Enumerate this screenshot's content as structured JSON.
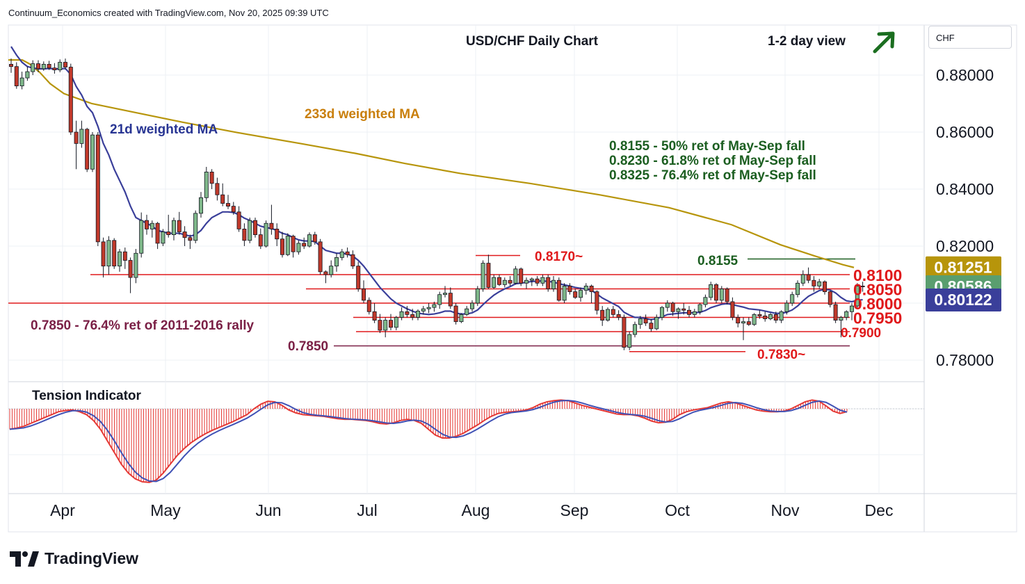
{
  "header": "Continuum_Economics created with TradingView.com, Nov 20, 2025 09:39 UTC",
  "brand": "TradingView",
  "currency_button": "CHF",
  "chart_data": {
    "type": "candlestick",
    "title": "USD/CHF Daily Chart",
    "view_note": "1-2 day view",
    "direction": "up",
    "y_axis": {
      "ticks": [
        "0.88000",
        "0.86000",
        "0.84000",
        "0.82000",
        "0.78000"
      ],
      "range": [
        0.7725,
        0.8955
      ]
    },
    "x_axis": {
      "labels": [
        "Apr",
        "May",
        "Jun",
        "Jul",
        "Aug",
        "Sep",
        "Oct",
        "Nov",
        "Dec"
      ]
    },
    "price_labels": [
      {
        "text": "0.81251",
        "color": "#b7950b",
        "value": 0.81251
      },
      {
        "text": "0.80586",
        "color": "#5a9e6f",
        "value": 0.80586
      },
      {
        "text": "0.80122",
        "color": "#3a3f9a",
        "value": 0.80122
      }
    ],
    "levels": [
      {
        "value": 0.81,
        "label": "0.8100",
        "color": "#e0191b"
      },
      {
        "value": 0.805,
        "label": "0.8050",
        "color": "#e0191b"
      },
      {
        "value": 0.8,
        "label": "0.8000",
        "color": "#e0191b"
      },
      {
        "value": 0.795,
        "label": "0.7950",
        "color": "#e0191b"
      },
      {
        "value": 0.79,
        "label": "0.7900",
        "color": "#e0191b"
      },
      {
        "value": 0.785,
        "label": "0.7850",
        "color": "#7a1f45"
      }
    ],
    "annotations": {
      "high": "0.8170~",
      "low": "0.7830~",
      "fib_level": "0.8155",
      "ma21": "21d weighted MA",
      "ma233": "233d weighted MA",
      "fib_lines": [
        "0.8155 - 50% ret of May-Sep fall",
        "0.8230 - 61.8% ret of May-Sep fall",
        "0.8325 - 76.4% ret of May-Sep fall"
      ],
      "long_term": "0.7850 - 76.4% ret of 2011-2016 rally"
    },
    "ohlc": [
      [
        0.8838,
        0.8858,
        0.8808,
        0.883
      ],
      [
        0.883,
        0.8845,
        0.8752,
        0.8762
      ],
      [
        0.8762,
        0.8812,
        0.875,
        0.879
      ],
      [
        0.879,
        0.883,
        0.878,
        0.8812
      ],
      [
        0.8812,
        0.8852,
        0.88,
        0.884
      ],
      [
        0.884,
        0.8852,
        0.881,
        0.8822
      ],
      [
        0.8822,
        0.8848,
        0.8815,
        0.8838
      ],
      [
        0.8838,
        0.885,
        0.8818,
        0.8825
      ],
      [
        0.8825,
        0.8842,
        0.8805,
        0.8818
      ],
      [
        0.8818,
        0.8855,
        0.881,
        0.8845
      ],
      [
        0.8845,
        0.8858,
        0.882,
        0.8828
      ],
      [
        0.8828,
        0.884,
        0.859,
        0.86
      ],
      [
        0.86,
        0.864,
        0.847,
        0.856
      ],
      [
        0.856,
        0.864,
        0.8545,
        0.861
      ],
      [
        0.861,
        0.8615,
        0.846,
        0.847
      ],
      [
        0.847,
        0.86,
        0.846,
        0.859
      ],
      [
        0.859,
        0.86,
        0.82,
        0.8215
      ],
      [
        0.8215,
        0.823,
        0.809,
        0.813
      ],
      [
        0.813,
        0.8235,
        0.81,
        0.822
      ],
      [
        0.822,
        0.8228,
        0.812,
        0.813
      ],
      [
        0.813,
        0.819,
        0.811,
        0.818
      ],
      [
        0.818,
        0.8195,
        0.812,
        0.815
      ],
      [
        0.815,
        0.816,
        0.8035,
        0.809
      ],
      [
        0.809,
        0.819,
        0.807,
        0.8175
      ],
      [
        0.8175,
        0.8318,
        0.816,
        0.829
      ],
      [
        0.829,
        0.831,
        0.824,
        0.826
      ],
      [
        0.826,
        0.829,
        0.823,
        0.828
      ],
      [
        0.828,
        0.8285,
        0.819,
        0.821
      ],
      [
        0.821,
        0.826,
        0.82,
        0.825
      ],
      [
        0.825,
        0.831,
        0.823,
        0.824
      ],
      [
        0.824,
        0.83,
        0.822,
        0.829
      ],
      [
        0.829,
        0.832,
        0.824,
        0.825
      ],
      [
        0.825,
        0.827,
        0.82,
        0.823
      ],
      [
        0.823,
        0.824,
        0.819,
        0.822
      ],
      [
        0.822,
        0.8325,
        0.821,
        0.8315
      ],
      [
        0.8315,
        0.839,
        0.83,
        0.837
      ],
      [
        0.837,
        0.8478,
        0.8355,
        0.846
      ],
      [
        0.846,
        0.847,
        0.84,
        0.842
      ],
      [
        0.842,
        0.844,
        0.836,
        0.838
      ],
      [
        0.838,
        0.842,
        0.834,
        0.835
      ],
      [
        0.835,
        0.838,
        0.833,
        0.834
      ],
      [
        0.834,
        0.8355,
        0.831,
        0.832
      ],
      [
        0.832,
        0.834,
        0.825,
        0.826
      ],
      [
        0.826,
        0.828,
        0.82,
        0.822
      ],
      [
        0.822,
        0.83,
        0.821,
        0.829
      ],
      [
        0.829,
        0.83,
        0.823,
        0.824
      ],
      [
        0.824,
        0.8262,
        0.819,
        0.82
      ],
      [
        0.82,
        0.829,
        0.8195,
        0.828
      ],
      [
        0.828,
        0.8345,
        0.824,
        0.826
      ],
      [
        0.826,
        0.828,
        0.82,
        0.8225
      ],
      [
        0.8225,
        0.825,
        0.816,
        0.817
      ],
      [
        0.817,
        0.8245,
        0.8165,
        0.8235
      ],
      [
        0.8235,
        0.824,
        0.816,
        0.818
      ],
      [
        0.818,
        0.822,
        0.817,
        0.821
      ],
      [
        0.821,
        0.823,
        0.819,
        0.82
      ],
      [
        0.82,
        0.8248,
        0.8195,
        0.824
      ],
      [
        0.824,
        0.825,
        0.8205,
        0.8215
      ],
      [
        0.8215,
        0.8225,
        0.81,
        0.811
      ],
      [
        0.811,
        0.8115,
        0.807,
        0.81
      ],
      [
        0.81,
        0.815,
        0.809,
        0.813
      ],
      [
        0.813,
        0.8175,
        0.811,
        0.816
      ],
      [
        0.816,
        0.819,
        0.815,
        0.818
      ],
      [
        0.818,
        0.8195,
        0.816,
        0.817
      ],
      [
        0.817,
        0.8185,
        0.812,
        0.813
      ],
      [
        0.813,
        0.8145,
        0.804,
        0.805
      ],
      [
        0.805,
        0.808,
        0.8,
        0.801
      ],
      [
        0.801,
        0.802,
        0.796,
        0.797
      ],
      [
        0.797,
        0.8,
        0.793,
        0.794
      ],
      [
        0.794,
        0.7962,
        0.7895,
        0.7905
      ],
      [
        0.7905,
        0.795,
        0.788,
        0.794
      ],
      [
        0.794,
        0.7962,
        0.7905,
        0.7915
      ],
      [
        0.7915,
        0.7955,
        0.7905,
        0.795
      ],
      [
        0.795,
        0.7985,
        0.794,
        0.797
      ],
      [
        0.797,
        0.799,
        0.795,
        0.796
      ],
      [
        0.796,
        0.798,
        0.794,
        0.795
      ],
      [
        0.795,
        0.7978,
        0.794,
        0.7972
      ],
      [
        0.7972,
        0.799,
        0.796,
        0.798
      ],
      [
        0.798,
        0.8,
        0.7965,
        0.7985
      ],
      [
        0.7985,
        0.8005,
        0.797,
        0.7995
      ],
      [
        0.7995,
        0.804,
        0.798,
        0.803
      ],
      [
        0.803,
        0.806,
        0.802,
        0.8035
      ],
      [
        0.8035,
        0.8055,
        0.798,
        0.799
      ],
      [
        0.799,
        0.8,
        0.7925,
        0.7935
      ],
      [
        0.7935,
        0.7965,
        0.793,
        0.796
      ],
      [
        0.796,
        0.799,
        0.7955,
        0.798
      ],
      [
        0.798,
        0.801,
        0.797,
        0.8
      ],
      [
        0.8,
        0.806,
        0.799,
        0.805
      ],
      [
        0.805,
        0.815,
        0.804,
        0.814
      ],
      [
        0.814,
        0.817,
        0.805,
        0.8055
      ],
      [
        0.8055,
        0.81,
        0.805,
        0.809
      ],
      [
        0.809,
        0.81,
        0.806,
        0.8065
      ],
      [
        0.8065,
        0.809,
        0.8055,
        0.808
      ],
      [
        0.808,
        0.8095,
        0.806,
        0.807
      ],
      [
        0.807,
        0.813,
        0.8065,
        0.812
      ],
      [
        0.812,
        0.8125,
        0.806,
        0.807
      ],
      [
        0.807,
        0.809,
        0.805,
        0.808
      ],
      [
        0.808,
        0.809,
        0.806,
        0.8085
      ],
      [
        0.8085,
        0.8095,
        0.806,
        0.807
      ],
      [
        0.807,
        0.81,
        0.806,
        0.809
      ],
      [
        0.809,
        0.81,
        0.804,
        0.805
      ],
      [
        0.805,
        0.8095,
        0.804,
        0.808
      ],
      [
        0.808,
        0.809,
        0.8005,
        0.801
      ],
      [
        0.801,
        0.807,
        0.8,
        0.806
      ],
      [
        0.806,
        0.807,
        0.803,
        0.804
      ],
      [
        0.804,
        0.805,
        0.8015,
        0.802
      ],
      [
        0.802,
        0.8055,
        0.8005,
        0.8045
      ],
      [
        0.8045,
        0.807,
        0.803,
        0.806
      ],
      [
        0.806,
        0.8065,
        0.8,
        0.804
      ],
      [
        0.804,
        0.8045,
        0.796,
        0.7975
      ],
      [
        0.7975,
        0.799,
        0.792,
        0.794
      ],
      [
        0.794,
        0.7985,
        0.7935,
        0.7978
      ],
      [
        0.7978,
        0.799,
        0.795,
        0.796
      ],
      [
        0.796,
        0.7975,
        0.794,
        0.795
      ],
      [
        0.795,
        0.796,
        0.7835,
        0.7845
      ],
      [
        0.7845,
        0.79,
        0.7835,
        0.789
      ],
      [
        0.789,
        0.7935,
        0.788,
        0.7925
      ],
      [
        0.7925,
        0.7955,
        0.791,
        0.7945
      ],
      [
        0.7945,
        0.796,
        0.792,
        0.793
      ],
      [
        0.793,
        0.7945,
        0.79,
        0.791
      ],
      [
        0.791,
        0.796,
        0.7905,
        0.795
      ],
      [
        0.795,
        0.799,
        0.794,
        0.7985
      ],
      [
        0.7985,
        0.801,
        0.797,
        0.8
      ],
      [
        0.8,
        0.8005,
        0.7955,
        0.797
      ],
      [
        0.797,
        0.7985,
        0.7945,
        0.798
      ],
      [
        0.798,
        0.8,
        0.796,
        0.7975
      ],
      [
        0.7975,
        0.799,
        0.795,
        0.796
      ],
      [
        0.796,
        0.798,
        0.795,
        0.797
      ],
      [
        0.797,
        0.8,
        0.796,
        0.7995
      ],
      [
        0.7995,
        0.803,
        0.7985,
        0.802
      ],
      [
        0.802,
        0.8075,
        0.801,
        0.8065
      ],
      [
        0.8065,
        0.807,
        0.8,
        0.801
      ],
      [
        0.801,
        0.806,
        0.8,
        0.805
      ],
      [
        0.805,
        0.8055,
        0.7995,
        0.8005
      ],
      [
        0.8005,
        0.802,
        0.794,
        0.795
      ],
      [
        0.795,
        0.796,
        0.7915,
        0.793
      ],
      [
        0.793,
        0.795,
        0.787,
        0.7935
      ],
      [
        0.7935,
        0.795,
        0.792,
        0.7925
      ],
      [
        0.7925,
        0.7965,
        0.792,
        0.796
      ],
      [
        0.796,
        0.7975,
        0.7945,
        0.7955
      ],
      [
        0.7955,
        0.797,
        0.7935,
        0.7945
      ],
      [
        0.7945,
        0.7965,
        0.794,
        0.796
      ],
      [
        0.796,
        0.797,
        0.793,
        0.794
      ],
      [
        0.794,
        0.7975,
        0.793,
        0.797
      ],
      [
        0.797,
        0.801,
        0.796,
        0.8
      ],
      [
        0.8,
        0.804,
        0.799,
        0.803
      ],
      [
        0.803,
        0.808,
        0.802,
        0.807
      ],
      [
        0.807,
        0.8115,
        0.806,
        0.81
      ],
      [
        0.81,
        0.8125,
        0.807,
        0.808
      ],
      [
        0.808,
        0.8095,
        0.804,
        0.806
      ],
      [
        0.806,
        0.8085,
        0.805,
        0.8075
      ],
      [
        0.8075,
        0.808,
        0.803,
        0.804
      ],
      [
        0.804,
        0.8045,
        0.7985,
        0.7995
      ],
      [
        0.7995,
        0.8005,
        0.793,
        0.794
      ],
      [
        0.794,
        0.7955,
        0.788,
        0.795
      ],
      [
        0.795,
        0.7975,
        0.794,
        0.797
      ],
      [
        0.797,
        0.8,
        0.794,
        0.799
      ],
      [
        0.799,
        0.807,
        0.798,
        0.806
      ],
      [
        0.806,
        0.8075,
        0.804,
        0.8059
      ]
    ],
    "ma21": [
      0.89,
      0.887,
      0.8845,
      0.883,
      0.8825,
      0.8822,
      0.8822,
      0.8823,
      0.8822,
      0.8822,
      0.8823,
      0.8802,
      0.876,
      0.873,
      0.869,
      0.8668,
      0.862,
      0.856,
      0.852,
      0.847,
      0.843,
      0.839,
      0.834,
      0.83,
      0.829,
      0.828,
      0.827,
      0.8255,
      0.825,
      0.8245,
      0.8245,
      0.8245,
      0.824,
      0.8235,
      0.824,
      0.8255,
      0.828,
      0.83,
      0.831,
      0.832,
      0.832,
      0.8318,
      0.831,
      0.8298,
      0.829,
      0.828,
      0.827,
      0.8265,
      0.8262,
      0.8255,
      0.8245,
      0.824,
      0.823,
      0.8222,
      0.8218,
      0.8218,
      0.8216,
      0.82,
      0.8185,
      0.818,
      0.8175,
      0.8175,
      0.8172,
      0.8165,
      0.815,
      0.813,
      0.8105,
      0.808,
      0.8055,
      0.8035,
      0.8015,
      0.8,
      0.799,
      0.798,
      0.7972,
      0.7965,
      0.7962,
      0.796,
      0.7962,
      0.7966,
      0.7972,
      0.7972,
      0.7965,
      0.7962,
      0.7962,
      0.7966,
      0.7976,
      0.7995,
      0.8012,
      0.8028,
      0.804,
      0.805,
      0.8058,
      0.8068,
      0.807,
      0.8073,
      0.8076,
      0.8077,
      0.8078,
      0.8076,
      0.8074,
      0.8068,
      0.8064,
      0.806,
      0.8055,
      0.8052,
      0.805,
      0.8045,
      0.8032,
      0.8018,
      0.8008,
      0.7998,
      0.7988,
      0.7968,
      0.7958,
      0.795,
      0.795,
      0.7946,
      0.7942,
      0.7946,
      0.7952,
      0.796,
      0.7962,
      0.7964,
      0.7966,
      0.7966,
      0.7966,
      0.7968,
      0.7974,
      0.7984,
      0.799,
      0.7996,
      0.7998,
      0.7995,
      0.799,
      0.7986,
      0.798,
      0.7978,
      0.7976,
      0.7972,
      0.7968,
      0.7964,
      0.7964,
      0.7968,
      0.7976,
      0.799,
      0.8008,
      0.8024,
      0.8034,
      0.8044,
      0.8048,
      0.8046,
      0.8036,
      0.802,
      0.8008,
      0.8005,
      0.801,
      0.8012
    ],
    "ma233": [
      [
        0,
        0.8853
      ],
      [
        20,
        0.8853
      ],
      [
        30,
        0.884
      ],
      [
        45,
        0.881
      ],
      [
        60,
        0.877
      ],
      [
        80,
        0.8735
      ],
      [
        120,
        0.87
      ],
      [
        180,
        0.867
      ],
      [
        250,
        0.8635
      ],
      [
        330,
        0.8598
      ],
      [
        420,
        0.856
      ],
      [
        500,
        0.8525
      ],
      [
        570,
        0.849
      ],
      [
        650,
        0.8455
      ],
      [
        750,
        0.842
      ],
      [
        850,
        0.838
      ],
      [
        950,
        0.8335
      ],
      [
        1040,
        0.8275
      ],
      [
        1110,
        0.8205
      ],
      [
        1160,
        0.8165
      ],
      [
        1200,
        0.8135
      ],
      [
        1216,
        0.8125
      ]
    ],
    "tension": [
      -0.35,
      -0.33,
      -0.3,
      -0.25,
      -0.2,
      -0.15,
      -0.1,
      -0.05,
      -0.03,
      -0.02,
      -0.05,
      -0.1,
      -0.2,
      -0.35,
      -0.55,
      -0.75,
      -0.95,
      -1.1,
      -1.2,
      -1.25,
      -1.26,
      -1.22,
      -1.1,
      -0.95,
      -0.8,
      -0.68,
      -0.58,
      -0.5,
      -0.43,
      -0.37,
      -0.32,
      -0.27,
      -0.22,
      -0.16,
      -0.1,
      0.0,
      0.08,
      0.13,
      0.12,
      0.06,
      -0.02,
      -0.07,
      -0.1,
      -0.11,
      -0.12,
      -0.13,
      -0.15,
      -0.17,
      -0.18,
      -0.18,
      -0.19,
      -0.2,
      -0.22,
      -0.25,
      -0.26,
      -0.24,
      -0.2,
      -0.18,
      -0.2,
      -0.25,
      -0.35,
      -0.45,
      -0.5,
      -0.5,
      -0.47,
      -0.42,
      -0.35,
      -0.28,
      -0.2,
      -0.13,
      -0.08,
      -0.06,
      -0.05,
      -0.04,
      -0.02,
      0.02,
      0.08,
      0.12,
      0.14,
      0.15,
      0.14,
      0.1,
      0.06,
      0.03,
      0.0,
      -0.03,
      -0.06,
      -0.09,
      -0.1,
      -0.1,
      -0.12,
      -0.16,
      -0.21,
      -0.24,
      -0.23,
      -0.18,
      -0.1,
      -0.05,
      -0.02,
      0.0,
      0.02,
      0.06,
      0.1,
      0.12,
      0.1,
      0.06,
      0.02,
      -0.02,
      -0.04,
      -0.05,
      -0.05,
      -0.04,
      0.0,
      0.06,
      0.12,
      0.15,
      0.13,
      0.05,
      -0.04,
      -0.08,
      -0.05
    ]
  },
  "tension_panel": {
    "label": "Tension Indicator"
  }
}
